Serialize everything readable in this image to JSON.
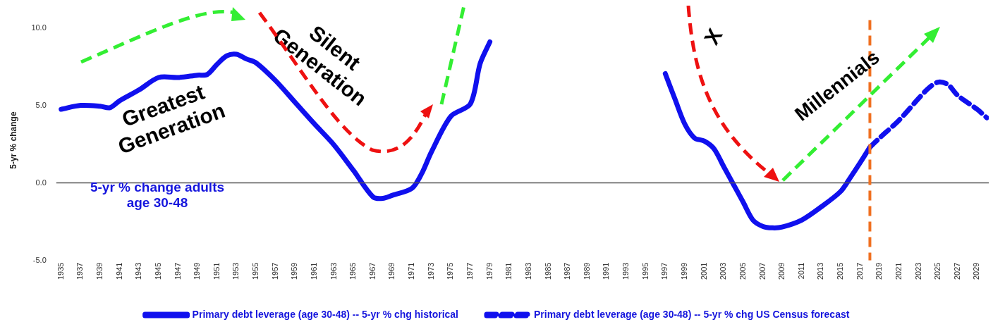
{
  "chart_data": {
    "type": "line",
    "ylabel": "5-yr % change",
    "legend": "bottom",
    "grid": false,
    "xlim": [
      1934.5,
      2030.2
    ],
    "xticks": [
      1935,
      1937,
      1939,
      1941,
      1943,
      1945,
      1947,
      1949,
      1951,
      1953,
      1955,
      1957,
      1959,
      1961,
      1963,
      1965,
      1967,
      1969,
      1971,
      1973,
      1975,
      1977,
      1979,
      1981,
      1983,
      1985,
      1987,
      1989,
      1991,
      1993,
      1995,
      1997,
      1999,
      2001,
      2003,
      2005,
      2007,
      2009,
      2011,
      2013,
      2015,
      2017,
      2019,
      2021,
      2023,
      2025,
      2027,
      2029
    ],
    "ylim": [
      -5,
      10.5
    ],
    "yticks": [
      {
        "value": -5,
        "label": "-5.0"
      },
      {
        "value": 0,
        "label": "0.0"
      },
      {
        "value": 5,
        "label": "5.0"
      },
      {
        "value": 10,
        "label": "10.0"
      }
    ],
    "series": [
      {
        "name": "Primary debt leverage (age 30-48) -- 5-yr % chg historical",
        "color": "#1010ee",
        "line_style": "solid",
        "x": [
          1935,
          1937,
          1939,
          1940,
          1941,
          1943,
          1945,
          1947,
          1949,
          1950,
          1951,
          1952,
          1953,
          1954,
          1955,
          1957,
          1959,
          1961,
          1963,
          1965,
          1967,
          1968,
          1969,
          1971,
          1972,
          1973,
          1975,
          1977,
          1978,
          1979,
          1980,
          1981,
          1995,
          1996,
          1997,
          1998,
          1999,
          2000,
          2001,
          2002,
          2003,
          2004,
          2005,
          2006,
          2007,
          2008,
          2009,
          2011,
          2013,
          2015,
          2016,
          2017,
          2018
        ],
        "values": [
          4.75,
          5.0,
          4.95,
          4.85,
          5.3,
          6.0,
          6.8,
          6.8,
          6.95,
          7.0,
          7.65,
          8.2,
          8.3,
          8.0,
          7.75,
          6.6,
          5.2,
          3.8,
          2.45,
          0.8,
          -0.9,
          -1.0,
          -0.8,
          -0.35,
          0.6,
          2.0,
          4.3,
          5.1,
          7.7,
          9.1,
          null,
          null,
          null,
          null,
          7.05,
          5.4,
          3.8,
          2.9,
          2.7,
          2.2,
          1.05,
          -0.1,
          -1.25,
          -2.4,
          -2.8,
          -2.9,
          -2.85,
          -2.4,
          -1.55,
          -0.55,
          0.35,
          1.3,
          2.3
        ]
      },
      {
        "name": "Primary debt leverage (age 30-48) -- 5-yr % chg US Census forecast",
        "color": "#1010ee",
        "line_style": "dashed",
        "x": [
          2018,
          2019,
          2021,
          2023,
          2024,
          2025,
          2026,
          2027,
          2029,
          2030
        ],
        "values": [
          2.3,
          2.9,
          4.05,
          5.45,
          6.1,
          6.5,
          6.35,
          5.65,
          4.75,
          4.2
        ]
      }
    ],
    "ref_lines": [
      {
        "axis": "y",
        "value": 0,
        "color": "#555555",
        "line_style": "solid"
      },
      {
        "axis": "x",
        "value": 2018,
        "color": "#f07020",
        "line_style": "dashed"
      }
    ],
    "annotations": [
      "Greatest\nGeneration",
      "Silent\nGeneration",
      "X",
      "Millennials",
      "5-yr % change adults\nage 30-48"
    ]
  }
}
